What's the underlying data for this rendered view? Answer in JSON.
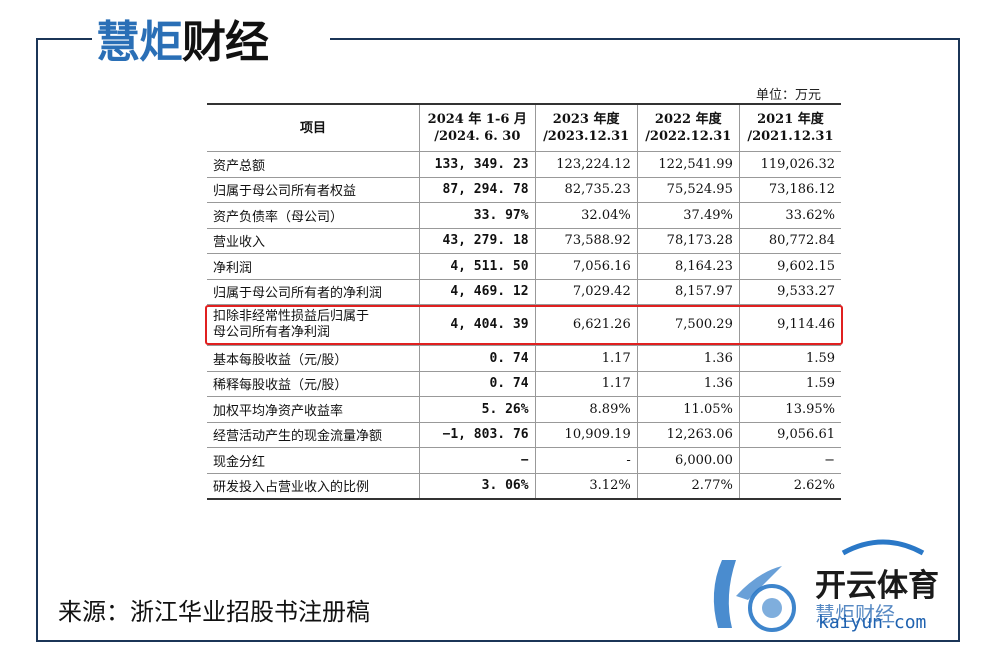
{
  "brand": {
    "part1": "慧炬",
    "part2": "财经"
  },
  "unit_label": "单位：万元",
  "table": {
    "headers": [
      "项目",
      "2024 年 1-6 月\n/2024. 6. 30",
      "2023 年度\n/2023.12.31",
      "2022 年度\n/2022.12.31",
      "2021 年度\n/2021.12.31"
    ],
    "rows": [
      {
        "label": "资产总额",
        "values": [
          "133, 349. 23",
          "123,224.12",
          "122,541.99",
          "119,026.32"
        ]
      },
      {
        "label": "归属于母公司所有者权益",
        "values": [
          "87, 294. 78",
          "82,735.23",
          "75,524.95",
          "73,186.12"
        ]
      },
      {
        "label": "资产负债率（母公司）",
        "values": [
          "33. 97%",
          "32.04%",
          "37.49%",
          "33.62%"
        ]
      },
      {
        "label": "营业收入",
        "values": [
          "43, 279. 18",
          "73,588.92",
          "78,173.28",
          "80,772.84"
        ]
      },
      {
        "label": "净利润",
        "values": [
          "4, 511. 50",
          "7,056.16",
          "8,164.23",
          "9,602.15"
        ]
      },
      {
        "label": "归属于母公司所有者的净利润",
        "values": [
          "4, 469. 12",
          "7,029.42",
          "8,157.97",
          "9,533.27"
        ]
      },
      {
        "label": "扣除非经常性损益后归属于\n母公司所有者净利润",
        "values": [
          "4, 404. 39",
          "6,621.26",
          "7,500.29",
          "9,114.46"
        ]
      },
      {
        "label": "基本每股收益（元/股）",
        "values": [
          "0. 74",
          "1.17",
          "1.36",
          "1.59"
        ]
      },
      {
        "label": "稀释每股收益（元/股）",
        "values": [
          "0. 74",
          "1.17",
          "1.36",
          "1.59"
        ]
      },
      {
        "label": "加权平均净资产收益率",
        "values": [
          "5. 26%",
          "8.89%",
          "11.05%",
          "13.95%"
        ]
      },
      {
        "label": "经营活动产生的现金流量净额",
        "values": [
          "−1, 803. 76",
          "10,909.19",
          "12,263.06",
          "9,056.61"
        ]
      },
      {
        "label": "现金分红",
        "values": [
          "−",
          "-",
          "6,000.00",
          "−"
        ]
      },
      {
        "label": "研发投入占营业收入的比例",
        "values": [
          "3. 06%",
          "3.12%",
          "2.77%",
          "2.62%"
        ]
      }
    ]
  },
  "source": "来源：浙江华业招股书注册稿",
  "watermark": {
    "name": "开云体育",
    "sub": "慧炬财经",
    "url": "kaiyun.com"
  },
  "colors": {
    "frame": "#1b3557",
    "brand_blue": "#2a6fb6",
    "highlight": "#e02020"
  }
}
